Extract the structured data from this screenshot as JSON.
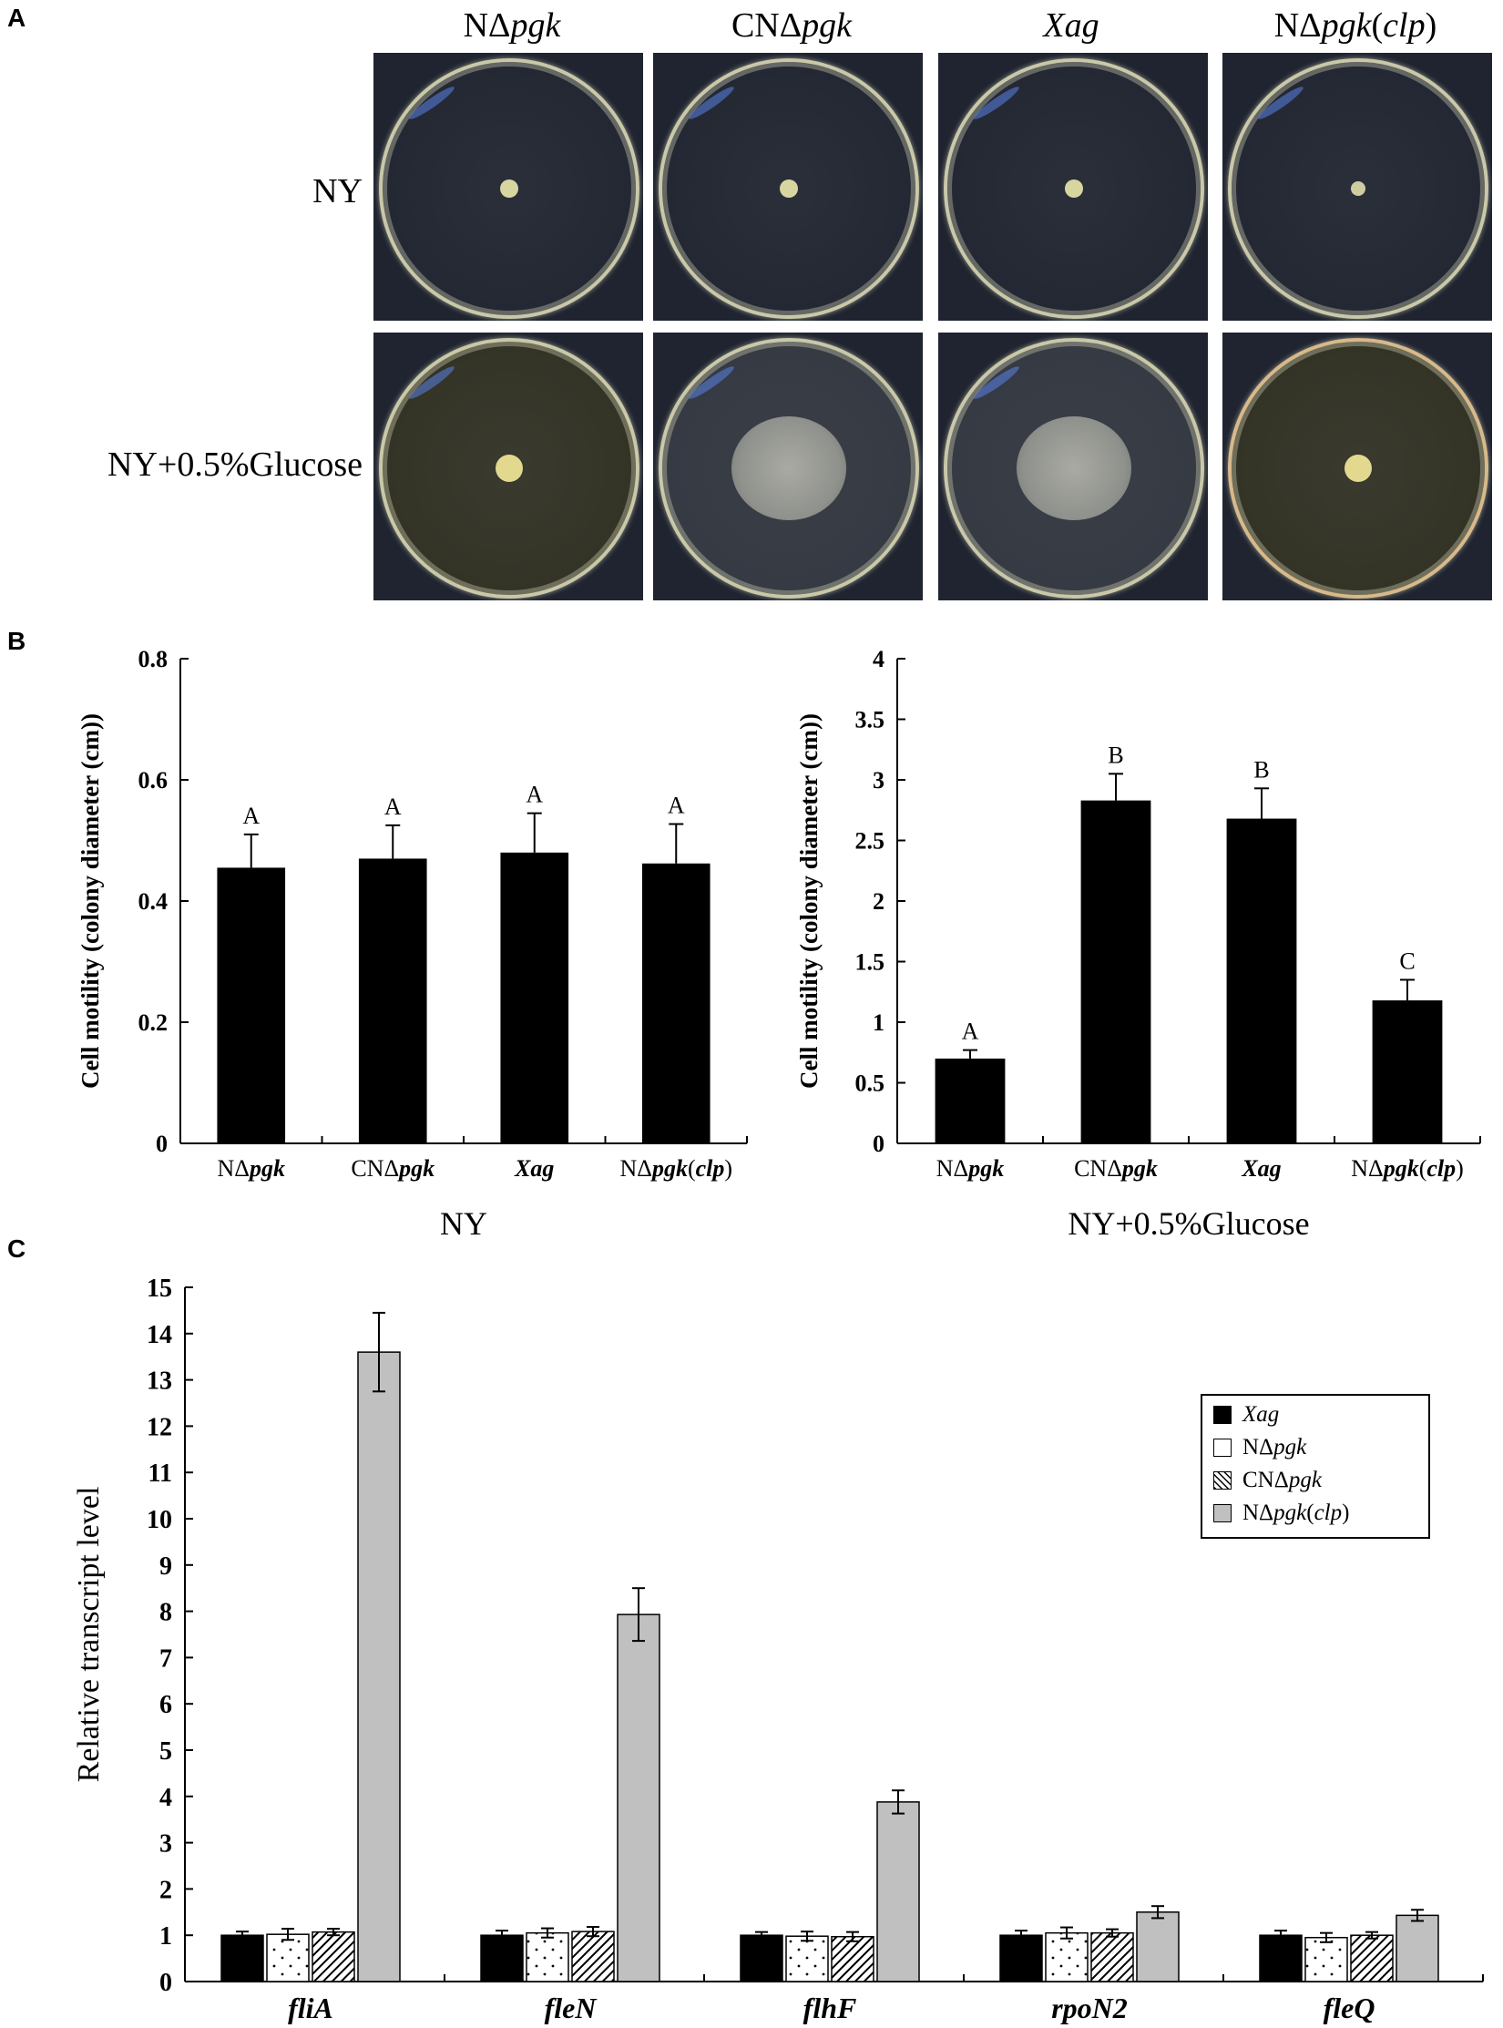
{
  "panels": {
    "A": "A",
    "B": "B",
    "C": "C"
  },
  "panelA": {
    "columns": [
      {
        "pre": "NΔ",
        "it": "pgk",
        "post": ""
      },
      {
        "pre": "CNΔ",
        "it": "pgk",
        "post": ""
      },
      {
        "pre": "",
        "it": "Xag",
        "post": ""
      },
      {
        "pre": "NΔ",
        "it": "pgk",
        "post": "(",
        "it2": "clp",
        "post2": ")"
      }
    ],
    "rows": [
      "NY",
      "NY+0.5%Glucose"
    ]
  },
  "chart_data": [
    {
      "type": "bar",
      "ylabel": "Cell motility (colony diameter (cm))",
      "xlabel": "NY",
      "categories": [
        "NΔpgk",
        "CNΔpgk",
        "Xag",
        "NΔpgk(clp)"
      ],
      "values": [
        0.455,
        0.47,
        0.48,
        0.462
      ],
      "errors": [
        0.055,
        0.055,
        0.065,
        0.065
      ],
      "letters": [
        "A",
        "A",
        "A",
        "A"
      ],
      "ylim": [
        0,
        0.8
      ],
      "yticks": [
        "0",
        "0.2",
        "0.4",
        "0.6",
        "0.8"
      ],
      "color": "#000000"
    },
    {
      "type": "bar",
      "ylabel": "Cell motility (colony diameter (cm))",
      "xlabel": "NY+0.5%Glucose",
      "categories": [
        "NΔpgk",
        "CNΔpgk",
        "Xag",
        "NΔpgk(clp)"
      ],
      "values": [
        0.7,
        2.83,
        2.68,
        1.18
      ],
      "errors": [
        0.07,
        0.22,
        0.25,
        0.17
      ],
      "letters": [
        "A",
        "B",
        "B",
        "C"
      ],
      "ylim": [
        0,
        4
      ],
      "yticks": [
        "0",
        "0.5",
        "1",
        "1.5",
        "2",
        "2.5",
        "3",
        "3.5",
        "4"
      ],
      "color": "#000000"
    },
    {
      "type": "bar",
      "ylabel": "Relative transcript level",
      "categories": [
        "fliA",
        "fleN",
        "flhF",
        "rpoN2",
        "fleQ"
      ],
      "ylim": [
        0,
        15
      ],
      "yticks": [
        "0",
        "1",
        "2",
        "3",
        "4",
        "5",
        "6",
        "7",
        "8",
        "9",
        "10",
        "11",
        "12",
        "13",
        "14",
        "15"
      ],
      "series": [
        {
          "name": "Xag",
          "values": [
            1.0,
            1.0,
            1.0,
            1.0,
            1.0
          ],
          "errors": [
            0.08,
            0.1,
            0.07,
            0.1,
            0.1
          ]
        },
        {
          "name": "NΔpgk",
          "values": [
            1.02,
            1.05,
            0.98,
            1.05,
            0.95
          ],
          "errors": [
            0.12,
            0.1,
            0.1,
            0.12,
            0.1
          ]
        },
        {
          "name": "CNΔpgk",
          "values": [
            1.07,
            1.08,
            0.97,
            1.05,
            1.0
          ],
          "errors": [
            0.07,
            0.1,
            0.1,
            0.08,
            0.07
          ]
        },
        {
          "name": "NΔpgk(clp)",
          "values": [
            13.6,
            7.93,
            3.88,
            1.5,
            1.43
          ],
          "errors": [
            0.85,
            0.57,
            0.25,
            0.13,
            0.12
          ]
        }
      ],
      "legend_position": "upper-right"
    }
  ],
  "legend": [
    {
      "pre": "",
      "it": "Xag",
      "post": "",
      "swatch": "black"
    },
    {
      "pre": "NΔ",
      "it": "pgk",
      "post": "",
      "swatch": "white"
    },
    {
      "pre": "CNΔ",
      "it": "pgk",
      "post": "",
      "swatch": "hatch"
    },
    {
      "pre": "NΔ",
      "it": "pgk",
      "post": "(",
      "it2": "clp",
      "post2": ")",
      "swatch": "grey"
    }
  ]
}
